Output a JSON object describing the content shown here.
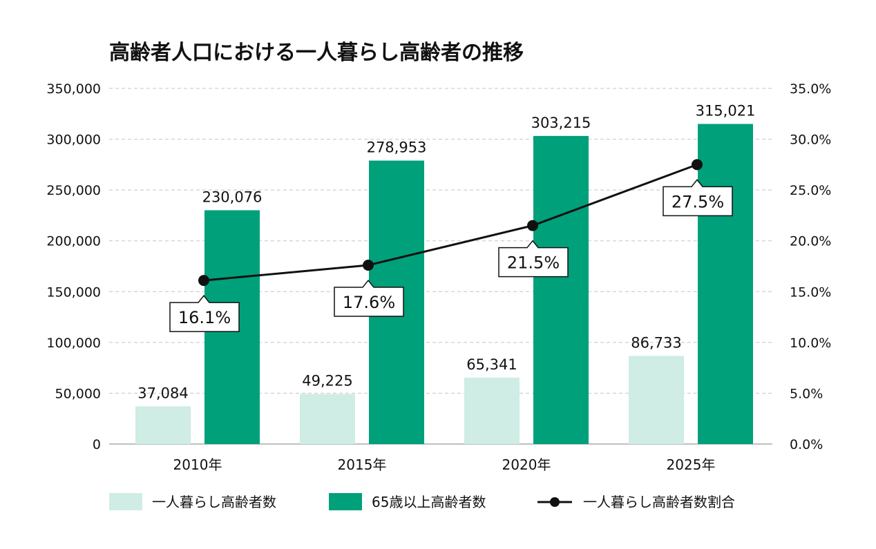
{
  "chart_data": {
    "type": "bar",
    "title": "高齢者人口における一人暮らし高齢者の推移",
    "categories": [
      "2010年",
      "2015年",
      "2020年",
      "2025年"
    ],
    "series": [
      {
        "name": "一人暮らし高齢者数",
        "type": "bar",
        "axis": "left",
        "color": "#cfece5",
        "values": [
          37084,
          49225,
          65341,
          86733
        ],
        "labels": [
          "37,084",
          "49,225",
          "65,341",
          "86,733"
        ]
      },
      {
        "name": "65歳以上高齢者数",
        "type": "bar",
        "axis": "left",
        "color": "#00a07a",
        "values": [
          230076,
          278953,
          303215,
          315021
        ],
        "labels": [
          "230,076",
          "278,953",
          "303,215",
          "315,021"
        ]
      },
      {
        "name": "一人暮らし高齢者数割合",
        "type": "line",
        "axis": "right",
        "color": "#111111",
        "values": [
          16.1,
          17.6,
          21.5,
          27.5
        ],
        "labels": [
          "16.1%",
          "17.6%",
          "21.5%",
          "27.5%"
        ]
      }
    ],
    "y_left": {
      "min": 0,
      "max": 350000,
      "ticks": [
        0,
        50000,
        100000,
        150000,
        200000,
        250000,
        300000,
        350000
      ],
      "tick_labels": [
        "0",
        "50,000",
        "100,000",
        "150,000",
        "200,000",
        "250,000",
        "300,000",
        "350,000"
      ]
    },
    "y_right": {
      "min": 0,
      "max": 35,
      "ticks": [
        0,
        5,
        10,
        15,
        20,
        25,
        30,
        35
      ],
      "tick_labels": [
        "0.0%",
        "5.0%",
        "10.0%",
        "15.0%",
        "20.0%",
        "25.0%",
        "30.0%",
        "35.0%"
      ]
    },
    "grid": true,
    "legend_position": "bottom"
  }
}
